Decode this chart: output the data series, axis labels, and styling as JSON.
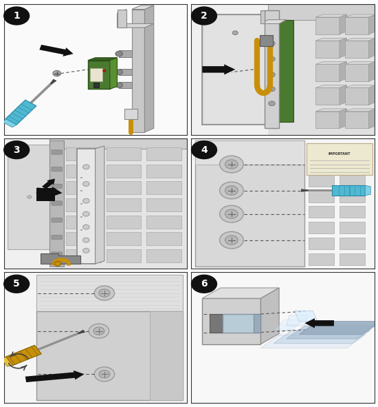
{
  "background_color": "#ffffff",
  "border_color": "#333333",
  "label_bg": "#111111",
  "label_fg": "#ffffff",
  "label_fontsize": 10,
  "figsize": [
    5.5,
    5.91
  ],
  "dpi": 100,
  "panel_bg": "#f4f4f4",
  "gray1": "#d8d8d8",
  "gray2": "#c0c0c0",
  "gray3": "#a8a8a8",
  "gray4": "#e8e8e8",
  "gray5": "#b8b8b8",
  "dark": "#555555",
  "darker": "#333333",
  "cable_color": "#c8900a",
  "cable_light": "#e8b030",
  "green_pcb": "#4a7a30",
  "green_pcb_light": "#6aaa50",
  "screw_blue": "#50b8d0",
  "screw_blue_dark": "#2888a8",
  "shaft_color": "#909090",
  "tip_color": "#444444",
  "arrow_black": "#111111",
  "white": "#ffffff",
  "cream": "#f0ede0",
  "red_dot": "#cc2200"
}
